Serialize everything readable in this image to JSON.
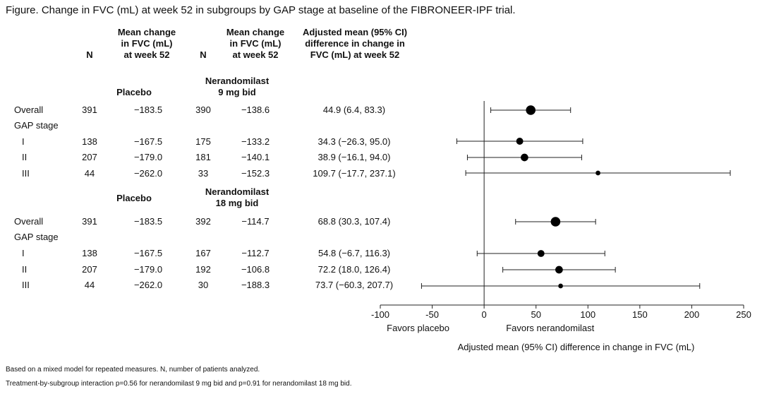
{
  "title": "Figure. Change in FVC (mL) at week 52 in subgroups by GAP stage at baseline of the FIBRONEER-IPF trial.",
  "headers": {
    "n1": "N",
    "mean1": [
      "Mean change",
      "in FVC (mL)",
      "at week 52"
    ],
    "n2": "N",
    "mean2": [
      "Mean change",
      "in FVC (mL)",
      "at week 52"
    ],
    "adj": [
      "Adjusted mean (95% CI)",
      "difference in change in",
      "FVC (mL) at week 52"
    ]
  },
  "groups": [
    {
      "placebo_label": "Placebo",
      "treatment_label": [
        "Nerandomilast",
        "9 mg bid"
      ],
      "rows": [
        {
          "label": "Overall",
          "n1": "391",
          "m1": "−183.5",
          "n2": "390",
          "m2": "−138.6",
          "ci": "44.9 (6.4, 83.3)"
        },
        {
          "label": "GAP stage",
          "n1": "",
          "m1": "",
          "n2": "",
          "m2": "",
          "ci": ""
        },
        {
          "label": "I",
          "n1": "138",
          "m1": "−167.5",
          "n2": "175",
          "m2": "−133.2",
          "ci": "34.3 (−26.3, 95.0)"
        },
        {
          "label": "II",
          "n1": "207",
          "m1": "−179.0",
          "n2": "181",
          "m2": "−140.1",
          "ci": "38.9 (−16.1, 94.0)"
        },
        {
          "label": "III",
          "n1": "44",
          "m1": "−262.0",
          "n2": "33",
          "m2": "−152.3",
          "ci": "109.7 (−17.7, 237.1)"
        }
      ]
    },
    {
      "placebo_label": "Placebo",
      "treatment_label": [
        "Nerandomilast",
        "18 mg bid"
      ],
      "rows": [
        {
          "label": "Overall",
          "n1": "391",
          "m1": "−183.5",
          "n2": "392",
          "m2": "−114.7",
          "ci": "68.8 (30.3, 107.4)"
        },
        {
          "label": "GAP stage",
          "n1": "",
          "m1": "",
          "n2": "",
          "m2": "",
          "ci": ""
        },
        {
          "label": "I",
          "n1": "138",
          "m1": "−167.5",
          "n2": "167",
          "m2": "−112.7",
          "ci": "54.8 (−6.7, 116.3)"
        },
        {
          "label": "II",
          "n1": "207",
          "m1": "−179.0",
          "n2": "192",
          "m2": "−106.8",
          "ci": "72.2 (18.0, 126.4)"
        },
        {
          "label": "III",
          "n1": "44",
          "m1": "−262.0",
          "n2": "30",
          "m2": "−188.3",
          "ci": "73.7 (−60.3, 207.7)"
        }
      ]
    }
  ],
  "chart_data": {
    "type": "scatter",
    "title": "",
    "xlabel": "Adjusted mean (95% CI) difference in change in FVC (mL)",
    "xlim": [
      -100,
      250
    ],
    "xticks": [
      -100,
      -50,
      0,
      50,
      100,
      150,
      200,
      250
    ],
    "favors_left": "Favors placebo",
    "favors_right": "Favors nerandomilast",
    "points": [
      {
        "group": 0,
        "row": 0,
        "estimate": 44.9,
        "lower": 6.4,
        "upper": 83.3,
        "n": 781
      },
      {
        "group": 0,
        "row": 2,
        "estimate": 34.3,
        "lower": -26.3,
        "upper": 95.0,
        "n": 313
      },
      {
        "group": 0,
        "row": 3,
        "estimate": 38.9,
        "lower": -16.1,
        "upper": 94.0,
        "n": 388
      },
      {
        "group": 0,
        "row": 4,
        "estimate": 109.7,
        "lower": -17.7,
        "upper": 237.1,
        "n": 77
      },
      {
        "group": 1,
        "row": 0,
        "estimate": 68.8,
        "lower": 30.3,
        "upper": 107.4,
        "n": 783
      },
      {
        "group": 1,
        "row": 2,
        "estimate": 54.8,
        "lower": -6.7,
        "upper": 116.3,
        "n": 305
      },
      {
        "group": 1,
        "row": 3,
        "estimate": 72.2,
        "lower": 18.0,
        "upper": 126.4,
        "n": 399
      },
      {
        "group": 1,
        "row": 4,
        "estimate": 73.7,
        "lower": -60.3,
        "upper": 207.7,
        "n": 74
      }
    ],
    "grid": false,
    "reference_line": 0
  },
  "footnotes": [
    "Based on a mixed model for repeated measures. N, number of patients analyzed.",
    "Treatment-by-subgroup interaction p=0.56 for nerandomilast 9 mg bid and p=0.91 for nerandomilast 18 mg bid."
  ]
}
